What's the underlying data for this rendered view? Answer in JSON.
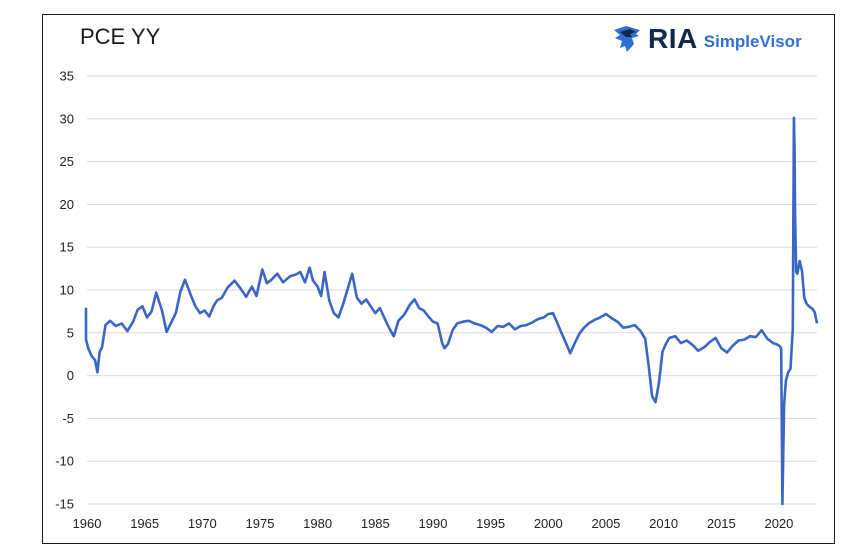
{
  "logo": {
    "brand": "RIA",
    "product": "SimpleVisor"
  },
  "chart_data": {
    "type": "line",
    "title": "PCE YY",
    "xlabel": "",
    "ylabel": "",
    "xlim": [
      1960,
      2023.3
    ],
    "ylim": [
      -15,
      35
    ],
    "yticks": [
      35,
      30,
      25,
      20,
      15,
      10,
      5,
      0,
      -5,
      -10,
      -15
    ],
    "xticks": [
      1960,
      1965,
      1970,
      1975,
      1980,
      1985,
      1990,
      1995,
      2000,
      2005,
      2010,
      2015,
      2020
    ],
    "grid": "horizontal",
    "colors": {
      "line": "#3a66c8",
      "grid": "#d9d9d9"
    },
    "series": [
      {
        "x": [
          1959.1,
          1959.4,
          1959.8,
          1960.1,
          1960.4,
          1960.7,
          1960.9,
          1961.1,
          1961.3,
          1961.6,
          1962.0,
          1962.5,
          1963.0,
          1963.5,
          1964.0,
          1964.4,
          1964.8,
          1965.2,
          1965.6,
          1966.0,
          1966.5,
          1966.9,
          1967.3,
          1967.7,
          1968.1,
          1968.5,
          1969.0,
          1969.4,
          1969.8,
          1970.2,
          1970.6,
          1971.0,
          1971.3,
          1971.7,
          1972.2,
          1972.8,
          1973.3,
          1973.8,
          1974.3,
          1974.7,
          1975.2,
          1975.6,
          1976.0,
          1976.5,
          1977.0,
          1977.6,
          1978.1,
          1978.5,
          1978.9,
          1979.3,
          1979.6,
          1980.0,
          1980.3,
          1980.6,
          1981.0,
          1981.4,
          1981.8,
          1982.2,
          1982.6,
          1983.0,
          1983.4,
          1983.8,
          1984.2,
          1984.6,
          1985.0,
          1985.4,
          1985.9,
          1986.3,
          1986.6,
          1987.0,
          1987.5,
          1988.0,
          1988.4,
          1988.8,
          1989.2,
          1989.6,
          1990.0,
          1990.4,
          1990.8,
          1991.0,
          1991.3,
          1991.7,
          1992.1,
          1992.6,
          1993.1,
          1993.6,
          1994.1,
          1994.6,
          1995.1,
          1995.6,
          1996.1,
          1996.6,
          1997.1,
          1997.6,
          1998.1,
          1998.6,
          1999.1,
          1999.6,
          2000.0,
          2000.4,
          2000.8,
          2001.1,
          2001.5,
          2001.9,
          2002.3,
          2002.7,
          2003.1,
          2003.5,
          2004.0,
          2004.5,
          2005.0,
          2005.5,
          2006.0,
          2006.5,
          2007.0,
          2007.5,
          2008.0,
          2008.4,
          2008.7,
          2009.0,
          2009.3,
          2009.6,
          2009.9,
          2010.2,
          2010.5,
          2011.0,
          2011.5,
          2012.0,
          2012.5,
          2013.0,
          2013.5,
          2014.0,
          2014.5,
          2015.0,
          2015.5,
          2016.0,
          2016.5,
          2017.0,
          2017.5,
          2018.0,
          2018.5,
          2019.0,
          2019.5,
          2019.9,
          2020.1,
          2020.2,
          2020.3,
          2020.45,
          2020.6,
          2020.8,
          2021.0,
          2021.2,
          2021.3,
          2021.35,
          2021.4,
          2021.5,
          2021.6,
          2021.8,
          2022.0,
          2022.2,
          2022.4,
          2022.6,
          2022.9,
          2023.1,
          2023.3
        ],
        "y": [
          5.3,
          7.8,
          4.2,
          3.2,
          2.3,
          1.8,
          0.4,
          2.8,
          3.3,
          5.9,
          6.4,
          5.8,
          6.1,
          5.2,
          6.3,
          7.7,
          8.1,
          6.8,
          7.5,
          9.7,
          7.6,
          5.1,
          6.2,
          7.3,
          9.8,
          11.2,
          9.4,
          8.1,
          7.3,
          7.6,
          6.9,
          8.2,
          8.8,
          9.1,
          10.3,
          11.1,
          10.2,
          9.2,
          10.4,
          9.3,
          12.4,
          10.8,
          11.2,
          11.9,
          10.9,
          11.6,
          11.8,
          12.1,
          10.9,
          12.6,
          11.1,
          10.4,
          9.3,
          12.1,
          8.8,
          7.3,
          6.8,
          8.3,
          10.1,
          11.9,
          9.1,
          8.4,
          8.9,
          8.1,
          7.3,
          7.9,
          6.4,
          5.3,
          4.6,
          6.4,
          7.1,
          8.3,
          8.9,
          7.9,
          7.6,
          6.9,
          6.3,
          6.1,
          3.8,
          3.2,
          3.7,
          5.3,
          6.1,
          6.3,
          6.4,
          6.1,
          5.9,
          5.6,
          5.1,
          5.8,
          5.7,
          6.1,
          5.4,
          5.8,
          5.9,
          6.2,
          6.6,
          6.8,
          7.2,
          7.3,
          6.1,
          5.1,
          3.9,
          2.6,
          3.8,
          4.9,
          5.6,
          6.1,
          6.5,
          6.8,
          7.2,
          6.7,
          6.3,
          5.6,
          5.7,
          5.9,
          5.2,
          4.3,
          1.2,
          -2.4,
          -3.1,
          -0.8,
          2.8,
          3.7,
          4.4,
          4.6,
          3.8,
          4.1,
          3.6,
          2.9,
          3.3,
          3.9,
          4.4,
          3.2,
          2.7,
          3.5,
          4.1,
          4.2,
          4.6,
          4.5,
          5.3,
          4.3,
          3.8,
          3.6,
          3.4,
          3.1,
          -15.2,
          -3.4,
          -0.6,
          0.4,
          0.8,
          5.5,
          30.1,
          26.8,
          18.5,
          12.1,
          11.9,
          13.4,
          12.2,
          9.1,
          8.4,
          8.1,
          7.8,
          7.4,
          6.1
        ]
      }
    ]
  }
}
